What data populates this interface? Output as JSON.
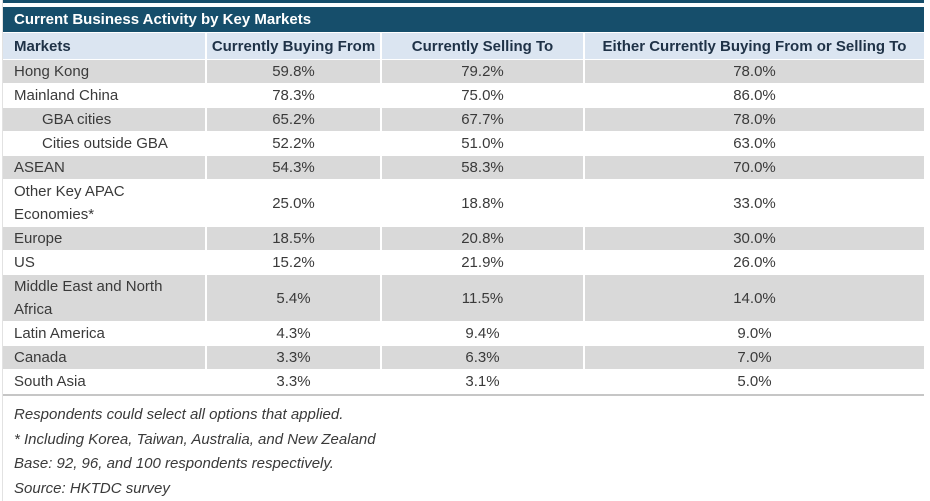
{
  "table": {
    "title": "Current Business Activity by Key Markets",
    "columns": [
      "Markets",
      "Currently Buying From",
      "Currently Selling To",
      "Either Currently Buying From or Selling To"
    ],
    "rows": [
      {
        "market": "Hong Kong",
        "indent": false,
        "buying": "59.8%",
        "selling": "79.2%",
        "either": "78.0%"
      },
      {
        "market": "Mainland China",
        "indent": false,
        "buying": "78.3%",
        "selling": "75.0%",
        "either": "86.0%"
      },
      {
        "market": "GBA cities",
        "indent": true,
        "buying": "65.2%",
        "selling": "67.7%",
        "either": "78.0%"
      },
      {
        "market": "Cities outside GBA",
        "indent": true,
        "buying": "52.2%",
        "selling": "51.0%",
        "either": "63.0%"
      },
      {
        "market": "ASEAN",
        "indent": false,
        "buying": "54.3%",
        "selling": "58.3%",
        "either": "70.0%"
      },
      {
        "market": "Other Key APAC Economies*",
        "indent": false,
        "buying": "25.0%",
        "selling": "18.8%",
        "either": "33.0%"
      },
      {
        "market": "Europe",
        "indent": false,
        "buying": "18.5%",
        "selling": "20.8%",
        "either": "30.0%"
      },
      {
        "market": "US",
        "indent": false,
        "buying": "15.2%",
        "selling": "21.9%",
        "either": "26.0%"
      },
      {
        "market": "Middle East and North Africa",
        "indent": false,
        "buying": "5.4%",
        "selling": "11.5%",
        "either": "14.0%"
      },
      {
        "market": "Latin America",
        "indent": false,
        "buying": "4.3%",
        "selling": "9.4%",
        "either": "9.0%"
      },
      {
        "market": "Canada",
        "indent": false,
        "buying": "3.3%",
        "selling": "6.3%",
        "either": "7.0%"
      },
      {
        "market": "South Asia",
        "indent": false,
        "buying": "3.3%",
        "selling": "3.1%",
        "either": "5.0%"
      }
    ],
    "notes": [
      "Respondents could select all options that applied.",
      "* Including Korea, Taiwan, Australia, and New Zealand",
      "Base: 92, 96, and 100 respondents respectively.",
      "Source: HKTDC survey"
    ]
  },
  "colors": {
    "title_bar": "#164e6b",
    "header_row": "#dbe5f1",
    "header_text": "#1f3247",
    "row_gray": "#d9d9d9",
    "body_text": "#3a3a3a"
  },
  "chart_data": {
    "type": "table",
    "title": "Current Business Activity by Key Markets",
    "columns": [
      "Markets",
      "Currently Buying From",
      "Currently Selling To",
      "Either Currently Buying From or Selling To"
    ],
    "unit": "%",
    "rows": [
      [
        "Hong Kong",
        59.8,
        79.2,
        78.0
      ],
      [
        "Mainland China",
        78.3,
        75.0,
        86.0
      ],
      [
        "GBA cities",
        65.2,
        67.7,
        78.0
      ],
      [
        "Cities outside GBA",
        52.2,
        51.0,
        63.0
      ],
      [
        "ASEAN",
        54.3,
        58.3,
        70.0
      ],
      [
        "Other Key APAC Economies*",
        25.0,
        18.8,
        33.0
      ],
      [
        "Europe",
        18.5,
        20.8,
        30.0
      ],
      [
        "US",
        15.2,
        21.9,
        26.0
      ],
      [
        "Middle East and North Africa",
        5.4,
        11.5,
        14.0
      ],
      [
        "Latin America",
        4.3,
        9.4,
        9.0
      ],
      [
        "Canada",
        3.3,
        6.3,
        7.0
      ],
      [
        "South Asia",
        3.3,
        3.1,
        5.0
      ]
    ],
    "sub_rows_of_mainland_china": [
      "GBA cities",
      "Cities outside GBA"
    ],
    "annotations": [
      "Respondents could select all options that applied.",
      "* Including Korea, Taiwan, Australia, and New Zealand",
      "Base: 92, 96, and 100 respondents respectively.",
      "Source: HKTDC survey"
    ]
  }
}
